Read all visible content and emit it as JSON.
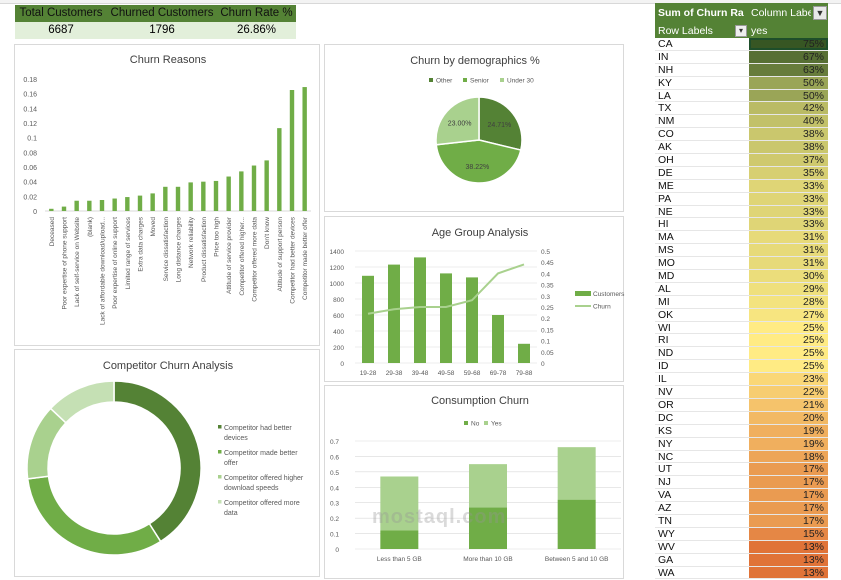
{
  "kpi": {
    "headers": [
      "Total Customers",
      "Churned Customers",
      "Churn Rate %"
    ],
    "values": [
      "6687",
      "1796",
      "26.86%"
    ]
  },
  "pivot": {
    "value_header": "Sum of Churn Ra",
    "column_labels": "Column Labels",
    "row_labels": "Row Labels",
    "column_value": "yes",
    "color_stops": {
      "high": "#375623",
      "mid_high": "#9aa557",
      "mid": "#ffeb84",
      "low": "#e07338"
    },
    "rows": [
      {
        "state": "CA",
        "value": "75%",
        "v": 75
      },
      {
        "state": "IN",
        "value": "67%",
        "v": 67
      },
      {
        "state": "NH",
        "value": "63%",
        "v": 63
      },
      {
        "state": "KY",
        "value": "50%",
        "v": 50
      },
      {
        "state": "LA",
        "value": "50%",
        "v": 50
      },
      {
        "state": "TX",
        "value": "42%",
        "v": 42
      },
      {
        "state": "NM",
        "value": "40%",
        "v": 40
      },
      {
        "state": "CO",
        "value": "38%",
        "v": 38
      },
      {
        "state": "AK",
        "value": "38%",
        "v": 38
      },
      {
        "state": "OH",
        "value": "37%",
        "v": 37
      },
      {
        "state": "DE",
        "value": "35%",
        "v": 35
      },
      {
        "state": "ME",
        "value": "33%",
        "v": 33
      },
      {
        "state": "PA",
        "value": "33%",
        "v": 33
      },
      {
        "state": "NE",
        "value": "33%",
        "v": 33
      },
      {
        "state": "HI",
        "value": "33%",
        "v": 33
      },
      {
        "state": "MA",
        "value": "31%",
        "v": 31
      },
      {
        "state": "MS",
        "value": "31%",
        "v": 31
      },
      {
        "state": "MO",
        "value": "31%",
        "v": 31
      },
      {
        "state": "MD",
        "value": "30%",
        "v": 30
      },
      {
        "state": "AL",
        "value": "29%",
        "v": 29
      },
      {
        "state": "MI",
        "value": "28%",
        "v": 28
      },
      {
        "state": "OK",
        "value": "27%",
        "v": 27
      },
      {
        "state": "WI",
        "value": "25%",
        "v": 25
      },
      {
        "state": "RI",
        "value": "25%",
        "v": 25
      },
      {
        "state": "ND",
        "value": "25%",
        "v": 25
      },
      {
        "state": "ID",
        "value": "25%",
        "v": 25
      },
      {
        "state": "IL",
        "value": "23%",
        "v": 23
      },
      {
        "state": "NV",
        "value": "22%",
        "v": 22
      },
      {
        "state": "OR",
        "value": "21%",
        "v": 21
      },
      {
        "state": "DC",
        "value": "20%",
        "v": 20
      },
      {
        "state": "KS",
        "value": "19%",
        "v": 19
      },
      {
        "state": "NY",
        "value": "19%",
        "v": 19
      },
      {
        "state": "NC",
        "value": "18%",
        "v": 18
      },
      {
        "state": "UT",
        "value": "17%",
        "v": 17
      },
      {
        "state": "NJ",
        "value": "17%",
        "v": 17
      },
      {
        "state": "VA",
        "value": "17%",
        "v": 17
      },
      {
        "state": "AZ",
        "value": "17%",
        "v": 17
      },
      {
        "state": "TN",
        "value": "17%",
        "v": 17
      },
      {
        "state": "WY",
        "value": "15%",
        "v": 15
      },
      {
        "state": "WV",
        "value": "13%",
        "v": 13
      },
      {
        "state": "GA",
        "value": "13%",
        "v": 13
      },
      {
        "state": "WA",
        "value": "13%",
        "v": 13
      }
    ]
  },
  "watermark": "mostaql.com",
  "colors": {
    "dark": "#548235",
    "mid": "#70ad47",
    "light": "#a9d18e",
    "lighter": "#c5e0b4",
    "line": "#a9d18e",
    "grid": "#d9d9d9",
    "text": "#404040"
  },
  "chart_data": [
    {
      "id": "churn_reasons",
      "type": "bar",
      "title": "Churn Reasons",
      "categories": [
        "Deceased",
        "Poor expertise of phone support",
        "Lack of self-service on Website",
        "(blank)",
        "Lack of affordable download/upload...",
        "Poor expertise of online support",
        "Limited range of services",
        "Extra data charges",
        "Moved",
        "Service dissatisfaction",
        "Long distance charges",
        "Network reliability",
        "Product dissatisfaction",
        "Price too high",
        "Attitude of service provider",
        "Competitor offered higher...",
        "Competitor offered more data",
        "Don't know",
        "Attitude of support person",
        "Competitor had better devices",
        "Competitor made better offer"
      ],
      "values": [
        0.003,
        0.006,
        0.014,
        0.014,
        0.015,
        0.017,
        0.019,
        0.021,
        0.024,
        0.033,
        0.033,
        0.039,
        0.04,
        0.041,
        0.047,
        0.054,
        0.062,
        0.069,
        0.113,
        0.165,
        0.169
      ],
      "ylim": [
        0,
        0.18
      ],
      "yticks": [
        "0",
        "0.02",
        "0.04",
        "0.06",
        "0.08",
        "0.1",
        "0.12",
        "0.14",
        "0.16",
        "0.18"
      ],
      "grid": false
    },
    {
      "id": "demographics",
      "type": "pie",
      "title": "Churn by demographics %",
      "labels": [
        "Other",
        "Senior",
        "Under 30"
      ],
      "values": [
        24.71,
        38.22,
        23.0
      ],
      "data_labels": [
        "24.71%",
        "38.22%",
        "23.00%"
      ],
      "legend": "top"
    },
    {
      "id": "age_group",
      "type": "bar",
      "title": "Age Group Analysis",
      "categories": [
        "19-28",
        "29-38",
        "39-48",
        "49-58",
        "59-68",
        "69-78",
        "79-88"
      ],
      "series": [
        {
          "name": "Customers",
          "type": "bar",
          "axis": "left",
          "values": [
            1090,
            1230,
            1320,
            1120,
            1070,
            600,
            240
          ]
        },
        {
          "name": "Churn",
          "type": "line",
          "axis": "right",
          "values": [
            0.22,
            0.24,
            0.25,
            0.25,
            0.28,
            0.4,
            0.44
          ]
        }
      ],
      "ylim": [
        0,
        1400
      ],
      "yticks": [
        "0",
        "200",
        "400",
        "600",
        "800",
        "1000",
        "1200",
        "1400"
      ],
      "y2lim": [
        0,
        0.5
      ],
      "y2ticks": [
        "0",
        "0.05",
        "0.1",
        "0.15",
        "0.2",
        "0.25",
        "0.3",
        "0.35",
        "0.4",
        "0.45",
        "0.5"
      ],
      "legend": "right",
      "grid": true
    },
    {
      "id": "competitor",
      "type": "pie",
      "title": "Competitor Churn Analysis",
      "labels": [
        "Competitor had better devices",
        "Competitor made better offer",
        "Competitor offered higher download speeds",
        "Competitor offered more data"
      ],
      "values": [
        41,
        32,
        14,
        13
      ],
      "legend": "right"
    },
    {
      "id": "consumption",
      "type": "bar",
      "title": "Consumption Churn",
      "categories": [
        "Less than 5 GB",
        "More than 10 GB",
        "Between 5 and 10 GB"
      ],
      "series": [
        {
          "name": "No",
          "values": [
            0.12,
            0.27,
            0.32
          ]
        },
        {
          "name": "Yes",
          "values": [
            0.35,
            0.28,
            0.34
          ]
        }
      ],
      "stacked": true,
      "ylim": [
        0,
        0.7
      ],
      "yticks": [
        "0",
        "0.1",
        "0.2",
        "0.3",
        "0.4",
        "0.5",
        "0.6",
        "0.7"
      ],
      "legend": "top",
      "grid": true
    }
  ]
}
